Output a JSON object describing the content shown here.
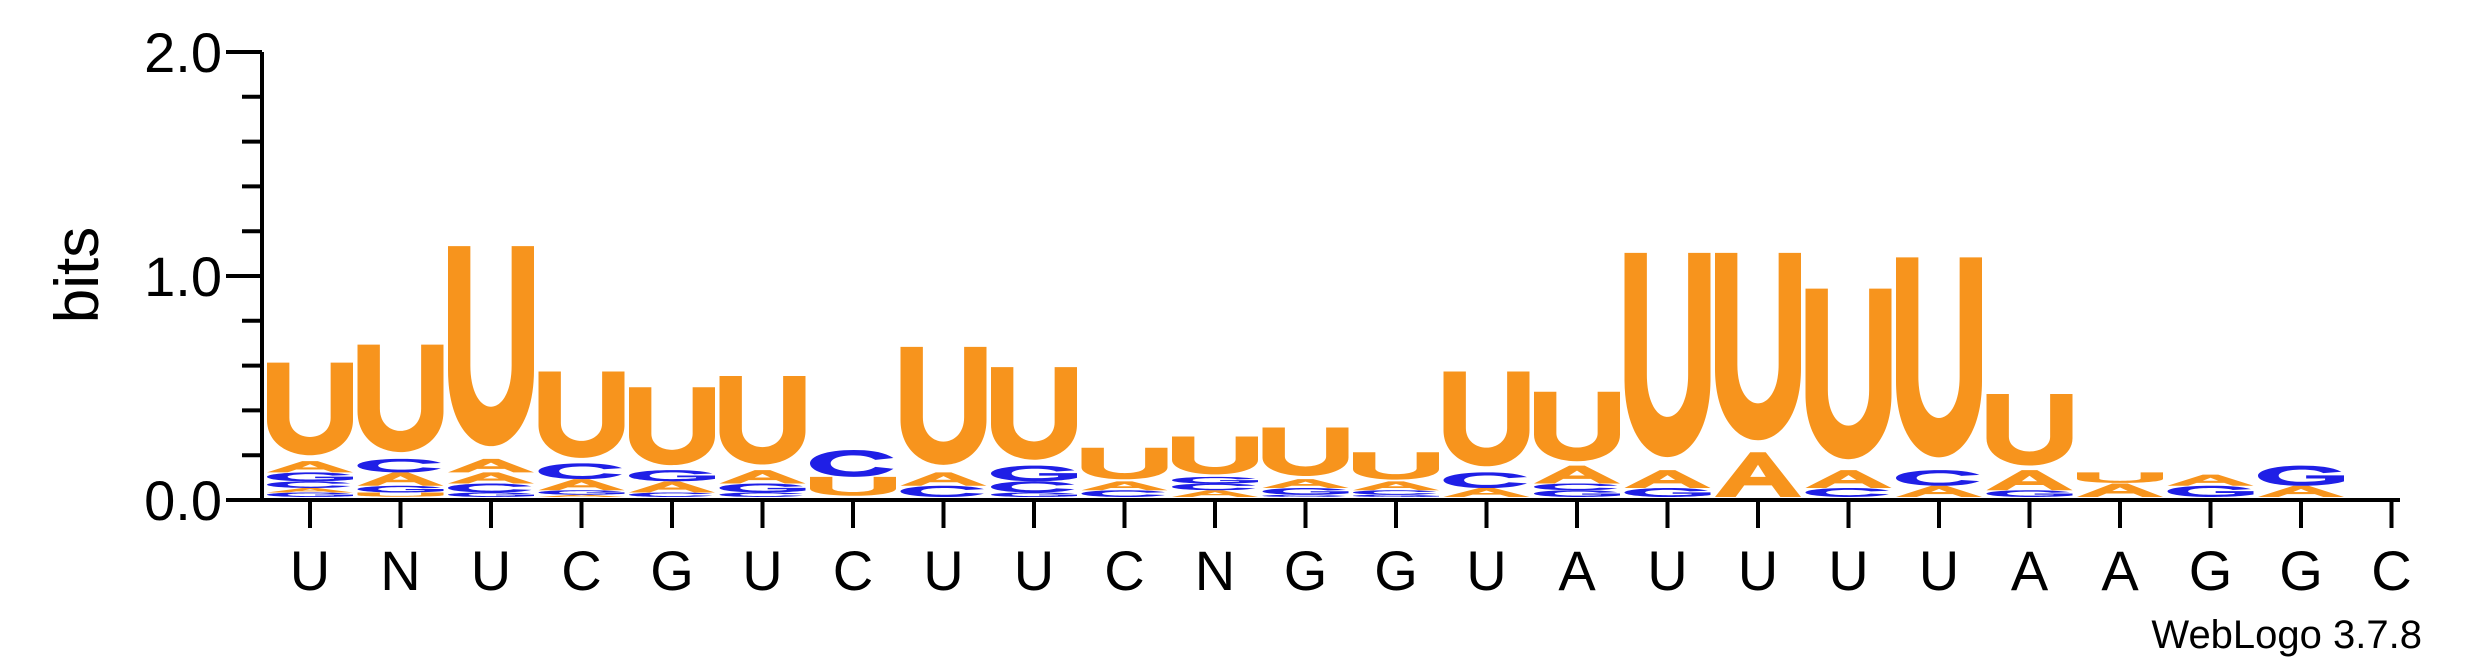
{
  "chart_data": {
    "type": "sequence-logo",
    "ylabel": "bits",
    "ylim": [
      0,
      2.0
    ],
    "yticks": [
      {
        "value": 0.0,
        "label": "0.0"
      },
      {
        "value": 1.0,
        "label": "1.0"
      },
      {
        "value": 2.0,
        "label": "2.0"
      }
    ],
    "positions": [
      "U",
      "N",
      "U",
      "C",
      "G",
      "U",
      "C",
      "U",
      "U",
      "C",
      "N",
      "G",
      "G",
      "U",
      "A",
      "U",
      "U",
      "U",
      "U",
      "A",
      "A",
      "G",
      "G",
      "C"
    ],
    "colors": {
      "U": "#F7941D",
      "A": "#F7941D",
      "C": "#1F1FE6",
      "G": "#1F1FE6"
    },
    "stacks": [
      [
        [
          "G",
          0.02
        ],
        [
          "A",
          0.02
        ],
        [
          "C",
          0.03
        ],
        [
          "G",
          0.04
        ],
        [
          "A",
          0.05
        ],
        [
          "U",
          0.44
        ]
      ],
      [
        [
          "U",
          0.02
        ],
        [
          "G",
          0.03
        ],
        [
          "A",
          0.06
        ],
        [
          "C",
          0.06
        ],
        [
          "U",
          0.51
        ]
      ],
      [
        [
          "G",
          0.02
        ],
        [
          "C",
          0.04
        ],
        [
          "A",
          0.05
        ],
        [
          "A",
          0.06
        ],
        [
          "U",
          0.95
        ]
      ],
      [
        [
          "A",
          0.01
        ],
        [
          "G",
          0.02
        ],
        [
          "A",
          0.05
        ],
        [
          "C",
          0.07
        ],
        [
          "U",
          0.41
        ]
      ],
      [
        [
          "C",
          0.02
        ],
        [
          "A",
          0.05
        ],
        [
          "G",
          0.05
        ],
        [
          "U",
          0.37
        ]
      ],
      [
        [
          "C",
          0.02
        ],
        [
          "G",
          0.04
        ],
        [
          "A",
          0.06
        ],
        [
          "U",
          0.42
        ]
      ],
      [
        [
          "U",
          0.09
        ],
        [
          "C",
          0.12
        ]
      ],
      [
        [
          "C",
          0.05
        ],
        [
          "A",
          0.06
        ],
        [
          "U",
          0.56
        ]
      ],
      [
        [
          "G",
          0.02
        ],
        [
          "C",
          0.05
        ],
        [
          "G",
          0.07
        ],
        [
          "U",
          0.44
        ]
      ],
      [
        [
          "C",
          0.03
        ],
        [
          "A",
          0.04
        ],
        [
          "U",
          0.15
        ]
      ],
      [
        [
          "A",
          0.03
        ],
        [
          "C",
          0.03
        ],
        [
          "G",
          0.03
        ],
        [
          "U",
          0.18
        ]
      ],
      [
        [
          "C",
          0.01
        ],
        [
          "G",
          0.03
        ],
        [
          "A",
          0.04
        ],
        [
          "U",
          0.23
        ]
      ],
      [
        [
          "G",
          0.01
        ],
        [
          "C",
          0.02
        ],
        [
          "A",
          0.04
        ],
        [
          "U",
          0.13
        ]
      ],
      [
        [
          "A",
          0.04
        ],
        [
          "C",
          0.07
        ],
        [
          "U",
          0.45
        ]
      ],
      [
        [
          "G",
          0.03
        ],
        [
          "C",
          0.03
        ],
        [
          "A",
          0.08
        ],
        [
          "U",
          0.33
        ]
      ],
      [
        [
          "G",
          0.04
        ],
        [
          "A",
          0.08
        ],
        [
          "U",
          0.97
        ]
      ],
      [
        [
          "A",
          0.2
        ],
        [
          "U",
          0.89
        ]
      ],
      [
        [
          "C",
          0.04
        ],
        [
          "A",
          0.08
        ],
        [
          "U",
          0.81
        ]
      ],
      [
        [
          "A",
          0.05
        ],
        [
          "C",
          0.07
        ],
        [
          "U",
          0.95
        ]
      ],
      [
        [
          "G",
          0.03
        ],
        [
          "A",
          0.09
        ],
        [
          "U",
          0.34
        ]
      ],
      [
        [
          "A",
          0.06
        ],
        [
          "U",
          0.05
        ]
      ],
      [
        [
          "G",
          0.05
        ],
        [
          "A",
          0.05
        ]
      ],
      [
        [
          "A",
          0.05
        ],
        [
          "G",
          0.09
        ]
      ],
      []
    ],
    "credit": "WebLogo 3.7.8"
  }
}
